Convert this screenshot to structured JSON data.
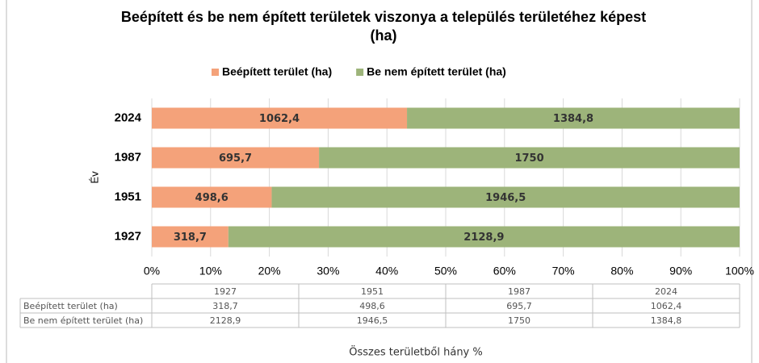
{
  "chart_data": {
    "type": "stacked-bar-100",
    "orientation": "horizontal",
    "title": "Beépített és be nem épített területek viszonya a település területéhez képest (ha)",
    "x_label": "Összes területből hány %",
    "y_label": "Év",
    "categories": [
      "1927",
      "1951",
      "1987",
      "2024"
    ],
    "series": [
      {
        "name": "Beépített terület (ha)",
        "color": "#f4a27a",
        "values": [
          318.7,
          498.6,
          695.7,
          1062.4
        ],
        "value_labels": [
          "318,7",
          "498,6",
          "695,7",
          "1062,4"
        ]
      },
      {
        "name": "Be nem épített terület (ha)",
        "color": "#9db47a",
        "values": [
          2128.9,
          1946.5,
          1750,
          1384.8
        ],
        "value_labels": [
          "2128,9",
          "1946,5",
          "1750",
          "1384,8"
        ]
      }
    ],
    "xlim": [
      0,
      100
    ],
    "xticks": [
      {
        "value": 0,
        "label": "0%"
      },
      {
        "value": 10,
        "label": "10%"
      },
      {
        "value": 20,
        "label": "20%"
      },
      {
        "value": 30,
        "label": "30%"
      },
      {
        "value": 40,
        "label": "40%"
      },
      {
        "value": 50,
        "label": "50%"
      },
      {
        "value": 60,
        "label": "60%"
      },
      {
        "value": 70,
        "label": "70%"
      },
      {
        "value": 80,
        "label": "80%"
      },
      {
        "value": 90,
        "label": "90%"
      },
      {
        "value": 100,
        "label": "100%"
      }
    ],
    "grid": true,
    "legend": "top"
  }
}
